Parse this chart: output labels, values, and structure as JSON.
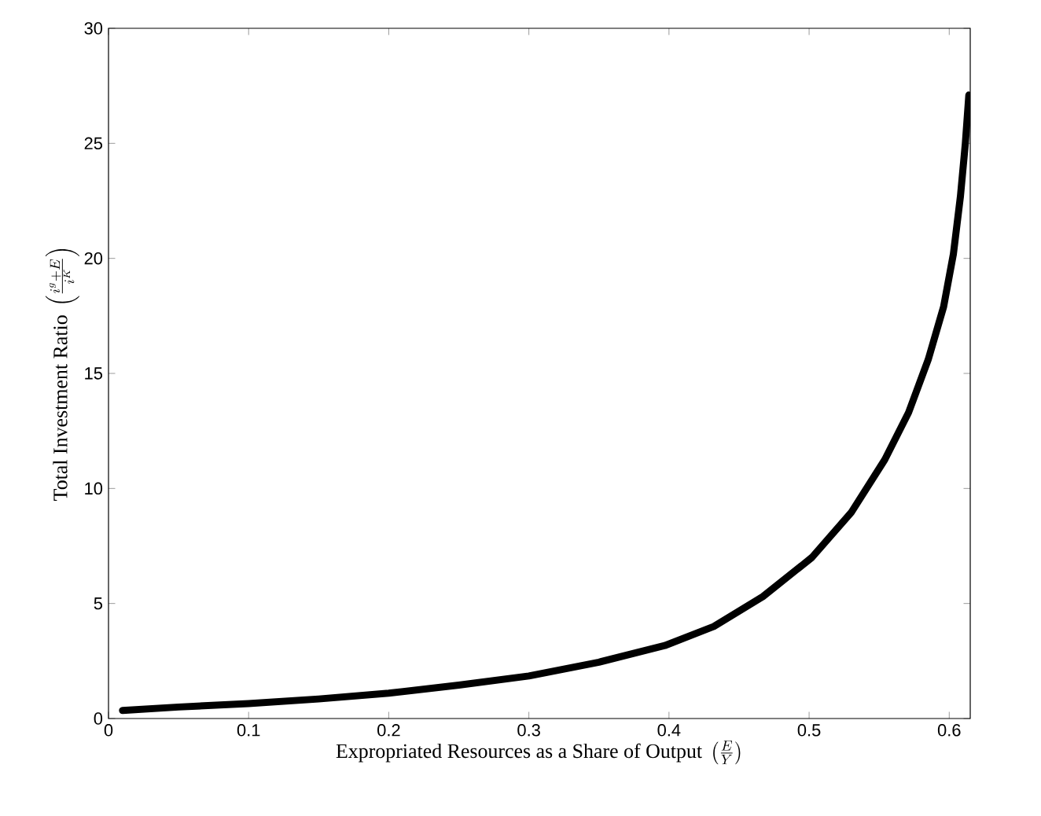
{
  "chart_data": {
    "type": "line",
    "xlabel": "\\text{Expropriated Resources as a Share of Output }\\left(\\frac{E}{Y}\\right)",
    "ylabel": "\\text{Total Investment Ratio }\\left(\\frac{i^g+E}{i^K}\\right)",
    "x": [
      0.01,
      0.05,
      0.1,
      0.15,
      0.2,
      0.25,
      0.3,
      0.35,
      0.397,
      0.432,
      0.467,
      0.502,
      0.53,
      0.554,
      0.571,
      0.585,
      0.596,
      0.603,
      0.608,
      0.6115,
      0.614
    ],
    "values": [
      0.35,
      0.5,
      0.65,
      0.85,
      1.1,
      1.45,
      1.85,
      2.45,
      3.17,
      4.0,
      5.3,
      7.0,
      8.95,
      11.25,
      13.3,
      15.6,
      17.9,
      20.2,
      22.7,
      25.0,
      27.1
    ],
    "color": "#000000",
    "xlim": [
      0,
      0.615
    ],
    "ylim": [
      0,
      30
    ],
    "xticks": [
      0,
      0.1,
      0.2,
      0.3,
      0.4,
      0.5,
      0.6
    ],
    "yticks": [
      0,
      5,
      10,
      15,
      20,
      25,
      30
    ]
  }
}
